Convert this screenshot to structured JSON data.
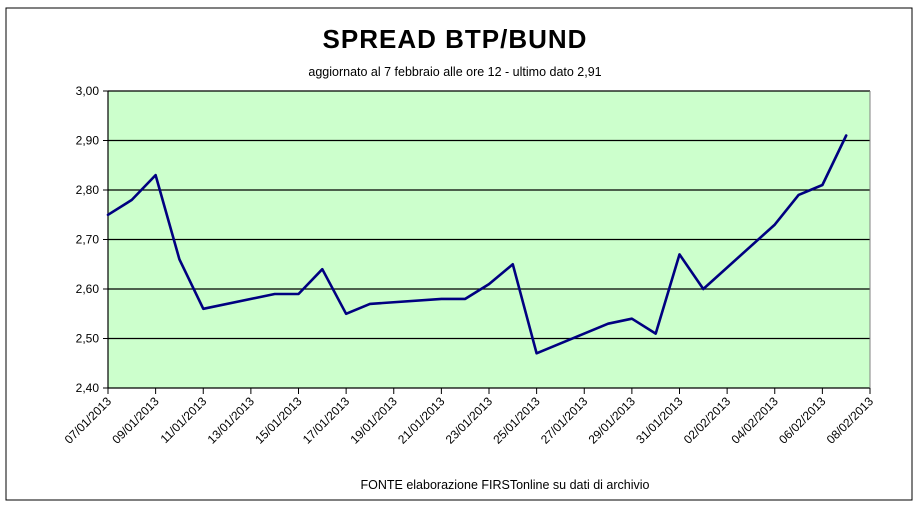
{
  "colors": {
    "plot_background": "#ccffcc",
    "series_line": "#000080",
    "gridline": "#000000",
    "frame": "#000000"
  },
  "chart_data": {
    "type": "line",
    "title": "SPREAD  BTP/BUND",
    "subtitle": "aggiornato al 7 febbraio alle ore 12 - ultimo dato 2,91",
    "source": "FONTE elaborazione FIRSTonline su dati di archivio",
    "ylim": [
      2.4,
      3.0
    ],
    "y_ticks": [
      "2,40",
      "2,50",
      "2,60",
      "2,70",
      "2,80",
      "2,90",
      "3,00"
    ],
    "x_tick_labels": [
      "07/01/2013",
      "09/01/2013",
      "11/01/2013",
      "13/01/2013",
      "15/01/2013",
      "17/01/2013",
      "19/01/2013",
      "21/01/2013",
      "23/01/2013",
      "25/01/2013",
      "27/01/2013",
      "29/01/2013",
      "31/01/2013",
      "02/02/2013",
      "04/02/2013",
      "06/02/2013",
      "08/02/2013"
    ],
    "grid": true,
    "legend": "none",
    "series": [
      {
        "x": [
          "07/01/2013",
          "08/01/2013",
          "09/01/2013",
          "10/01/2013",
          "11/01/2013",
          "14/01/2013",
          "15/01/2013",
          "16/01/2013",
          "17/01/2013",
          "18/01/2013",
          "21/01/2013",
          "22/01/2013",
          "23/01/2013",
          "24/01/2013",
          "25/01/2013",
          "28/01/2013",
          "29/01/2013",
          "30/01/2013",
          "31/01/2013",
          "01/02/2013",
          "04/02/2013",
          "05/02/2013",
          "06/02/2013",
          "07/02/2013"
        ],
        "values": [
          2.75,
          2.78,
          2.83,
          2.66,
          2.56,
          2.59,
          2.59,
          2.64,
          2.55,
          2.57,
          2.58,
          2.58,
          2.61,
          2.65,
          2.47,
          2.53,
          2.54,
          2.51,
          2.67,
          2.6,
          2.73,
          2.79,
          2.81,
          2.91
        ]
      }
    ]
  }
}
